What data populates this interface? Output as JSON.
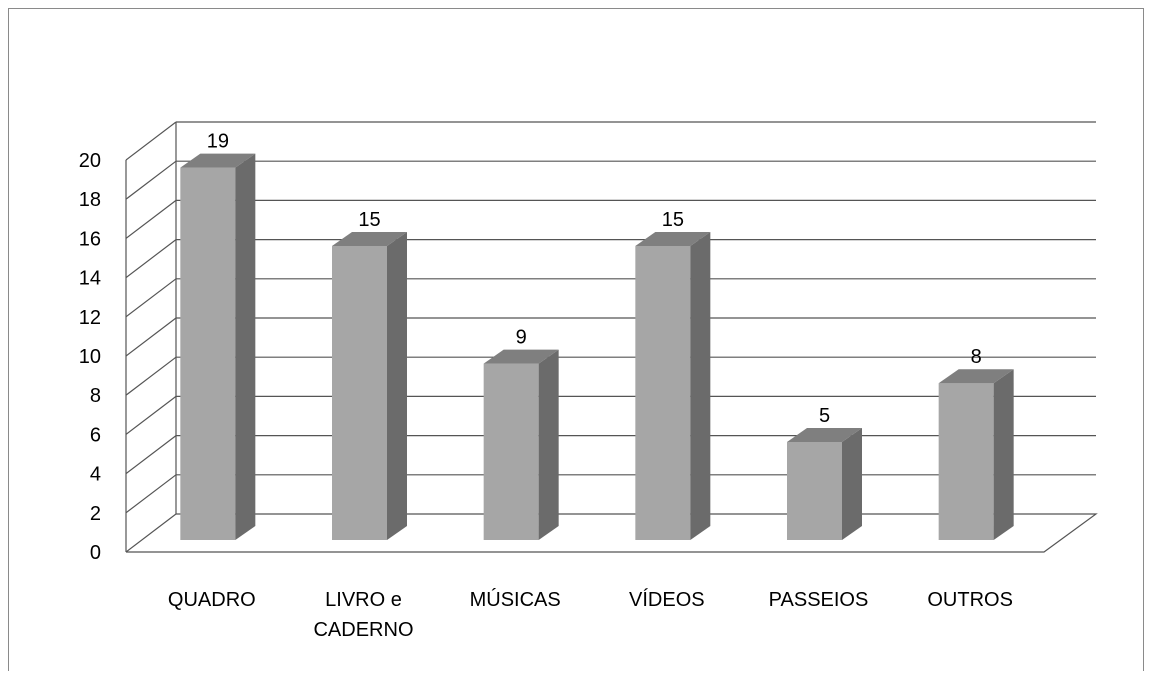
{
  "chart_data": {
    "type": "bar",
    "title": "",
    "xlabel": "",
    "ylabel": "",
    "ylim": [
      0,
      20
    ],
    "yticks": [
      "0",
      "2",
      "4",
      "6",
      "8",
      "10",
      "12",
      "14",
      "16",
      "18",
      "20"
    ],
    "grid": true,
    "legend": "none",
    "style": "3d-column",
    "categories": [
      [
        "QUADRO"
      ],
      [
        "LIVRO e",
        "CADERNO"
      ],
      [
        "MÚSICAS"
      ],
      [
        "VÍDEOS"
      ],
      [
        "PASSEIOS"
      ],
      [
        "OUTROS"
      ]
    ],
    "values": [
      19,
      15,
      9,
      15,
      5,
      8
    ],
    "data_labels": [
      "19",
      "15",
      "9",
      "15",
      "5",
      "8"
    ],
    "colors": {
      "bar_front": "#a6a6a6",
      "bar_side": "#6b6b6b",
      "bar_top": "#7f7f7f",
      "grid": "#555555"
    }
  }
}
